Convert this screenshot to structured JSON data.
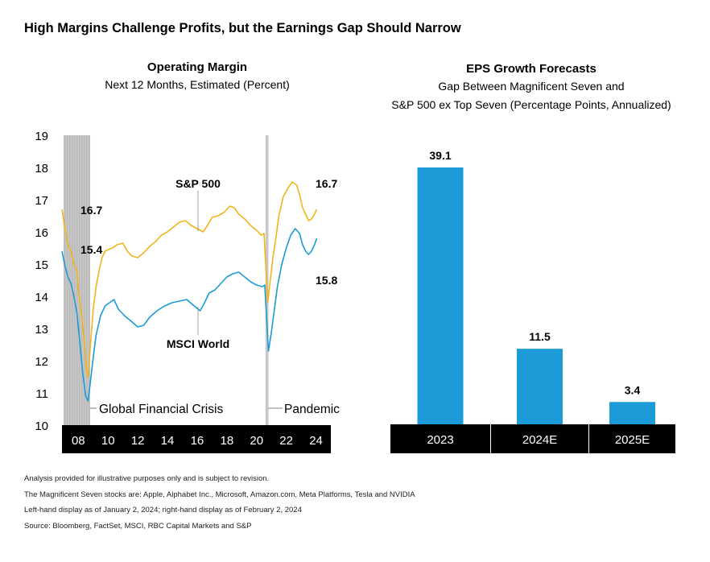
{
  "title": "High Margins Challenge Profits, but the Earnings Gap Should Narrow",
  "colors": {
    "sp500": "#f2b41c",
    "msci": "#1c9bd8",
    "bar": "#1c9bd8",
    "axis_band": "#000000",
    "shade": "#c8c8c8"
  },
  "chart_data": [
    {
      "type": "line",
      "title": "Operating Margin",
      "subtitle": "Next 12 Months, Estimated (Percent)",
      "ylim": [
        10,
        19
      ],
      "yticks": [
        "10",
        "11",
        "12",
        "13",
        "14",
        "15",
        "16",
        "17",
        "18",
        "19"
      ],
      "xlim": [
        2006.9,
        2025.0
      ],
      "xticks": [
        {
          "value": 2008,
          "label": "08"
        },
        {
          "value": 2010,
          "label": "10"
        },
        {
          "value": 2012,
          "label": "12"
        },
        {
          "value": 2014,
          "label": "14"
        },
        {
          "value": 2016,
          "label": "16"
        },
        {
          "value": 2018,
          "label": "18"
        },
        {
          "value": 2020,
          "label": "20"
        },
        {
          "value": 2022,
          "label": "22"
        },
        {
          "value": 2024,
          "label": "24"
        }
      ],
      "shaded_periods": [
        {
          "label": "Global Financial Crisis",
          "start": 2007.0,
          "end": 2008.8
        },
        {
          "label": "Pandemic",
          "start": 2020.6,
          "end": 2020.8
        }
      ],
      "series": [
        {
          "name": "S&P 500",
          "start_label": "16.7",
          "end_label": "16.7",
          "points": [
            [
              2006.9,
              16.7
            ],
            [
              2007.1,
              16.1
            ],
            [
              2007.3,
              15.6
            ],
            [
              2007.5,
              15.4
            ],
            [
              2007.7,
              15.0
            ],
            [
              2007.9,
              14.8
            ],
            [
              2008.0,
              14.2
            ],
            [
              2008.2,
              13.5
            ],
            [
              2008.4,
              12.6
            ],
            [
              2008.55,
              11.7
            ],
            [
              2008.65,
              11.5
            ],
            [
              2008.8,
              12.4
            ],
            [
              2009.0,
              13.6
            ],
            [
              2009.2,
              14.3
            ],
            [
              2009.4,
              14.8
            ],
            [
              2009.6,
              15.2
            ],
            [
              2009.8,
              15.4
            ],
            [
              2010.0,
              15.45
            ],
            [
              2010.3,
              15.5
            ],
            [
              2010.6,
              15.6
            ],
            [
              2011.0,
              15.65
            ],
            [
              2011.3,
              15.4
            ],
            [
              2011.6,
              15.25
            ],
            [
              2012.0,
              15.2
            ],
            [
              2012.4,
              15.35
            ],
            [
              2012.8,
              15.55
            ],
            [
              2013.2,
              15.7
            ],
            [
              2013.6,
              15.9
            ],
            [
              2014.0,
              16.0
            ],
            [
              2014.4,
              16.15
            ],
            [
              2014.8,
              16.3
            ],
            [
              2015.2,
              16.35
            ],
            [
              2015.6,
              16.2
            ],
            [
              2016.0,
              16.1
            ],
            [
              2016.4,
              16.0
            ],
            [
              2016.7,
              16.2
            ],
            [
              2017.0,
              16.45
            ],
            [
              2017.4,
              16.5
            ],
            [
              2017.8,
              16.6
            ],
            [
              2018.2,
              16.8
            ],
            [
              2018.5,
              16.75
            ],
            [
              2018.8,
              16.55
            ],
            [
              2019.2,
              16.4
            ],
            [
              2019.6,
              16.2
            ],
            [
              2020.0,
              16.05
            ],
            [
              2020.3,
              15.9
            ],
            [
              2020.5,
              15.95
            ],
            [
              2020.75,
              13.8
            ],
            [
              2020.9,
              14.4
            ],
            [
              2021.1,
              15.2
            ],
            [
              2021.3,
              15.8
            ],
            [
              2021.5,
              16.5
            ],
            [
              2021.8,
              17.1
            ],
            [
              2022.1,
              17.35
            ],
            [
              2022.4,
              17.55
            ],
            [
              2022.7,
              17.45
            ],
            [
              2022.9,
              17.15
            ],
            [
              2023.1,
              16.75
            ],
            [
              2023.3,
              16.55
            ],
            [
              2023.5,
              16.35
            ],
            [
              2023.7,
              16.4
            ],
            [
              2023.9,
              16.55
            ],
            [
              2024.05,
              16.7
            ]
          ]
        },
        {
          "name": "MSCI World",
          "start_label": "15.4",
          "end_label": "15.8",
          "points": [
            [
              2006.9,
              15.4
            ],
            [
              2007.1,
              14.95
            ],
            [
              2007.3,
              14.6
            ],
            [
              2007.5,
              14.4
            ],
            [
              2007.7,
              14.0
            ],
            [
              2007.9,
              13.5
            ],
            [
              2008.1,
              12.6
            ],
            [
              2008.3,
              11.6
            ],
            [
              2008.5,
              10.9
            ],
            [
              2008.65,
              10.75
            ],
            [
              2008.8,
              11.3
            ],
            [
              2009.0,
              12.1
            ],
            [
              2009.2,
              12.8
            ],
            [
              2009.5,
              13.4
            ],
            [
              2009.8,
              13.7
            ],
            [
              2010.1,
              13.8
            ],
            [
              2010.4,
              13.9
            ],
            [
              2010.7,
              13.6
            ],
            [
              2011.1,
              13.4
            ],
            [
              2011.5,
              13.25
            ],
            [
              2012.0,
              13.05
            ],
            [
              2012.4,
              13.1
            ],
            [
              2012.8,
              13.35
            ],
            [
              2013.3,
              13.55
            ],
            [
              2013.8,
              13.7
            ],
            [
              2014.3,
              13.8
            ],
            [
              2014.8,
              13.85
            ],
            [
              2015.3,
              13.9
            ],
            [
              2015.8,
              13.7
            ],
            [
              2016.2,
              13.55
            ],
            [
              2016.5,
              13.8
            ],
            [
              2016.8,
              14.1
            ],
            [
              2017.2,
              14.2
            ],
            [
              2017.6,
              14.4
            ],
            [
              2018.0,
              14.6
            ],
            [
              2018.4,
              14.7
            ],
            [
              2018.8,
              14.75
            ],
            [
              2019.2,
              14.6
            ],
            [
              2019.6,
              14.45
            ],
            [
              2020.0,
              14.35
            ],
            [
              2020.4,
              14.3
            ],
            [
              2020.55,
              14.35
            ],
            [
              2020.8,
              12.3
            ],
            [
              2021.0,
              12.9
            ],
            [
              2021.2,
              13.6
            ],
            [
              2021.4,
              14.3
            ],
            [
              2021.7,
              15.0
            ],
            [
              2022.0,
              15.5
            ],
            [
              2022.3,
              15.9
            ],
            [
              2022.6,
              16.1
            ],
            [
              2022.9,
              15.95
            ],
            [
              2023.1,
              15.6
            ],
            [
              2023.3,
              15.4
            ],
            [
              2023.5,
              15.3
            ],
            [
              2023.7,
              15.4
            ],
            [
              2023.9,
              15.6
            ],
            [
              2024.05,
              15.8
            ]
          ]
        }
      ]
    },
    {
      "type": "bar",
      "title": "EPS Growth Forecasts",
      "subtitle_line1": "Gap Between Magnificent Seven and",
      "subtitle_line2": "S&P 500 ex Top Seven (Percentage Points, Annualized)",
      "categories": [
        "2023",
        "2024E",
        "2025E"
      ],
      "values": [
        39.1,
        11.5,
        3.4
      ],
      "value_labels": [
        "39.1",
        "11.5",
        "3.4"
      ],
      "ylim": [
        0,
        39.1
      ]
    }
  ],
  "footnotes": [
    "Analysis provided for illustrative purposes only and is subject to revision.",
    "The Magnificent Seven stocks are: Apple, Alphabet Inc., Microsoft, Amazon.com, Meta Platforms, Tesla and NVIDIA",
    "Left-hand display as of January 2, 2024; right-hand display as of February 2, 2024",
    "Source: Bloomberg, FactSet, MSCI, RBC Capital Markets and S&P"
  ]
}
